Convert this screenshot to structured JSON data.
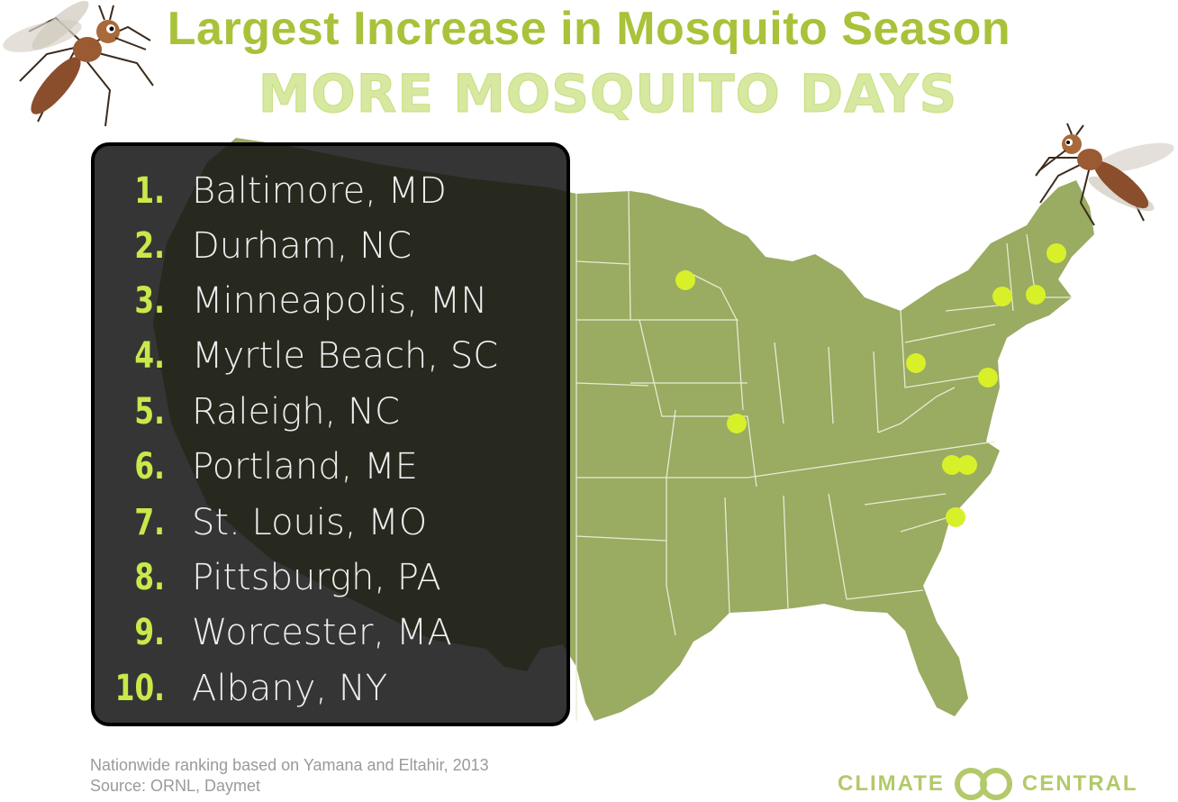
{
  "header": {
    "title": "Largest Increase in Mosquito Season",
    "subtitle": "MORE MOSQUITO DAYS"
  },
  "rankings": [
    {
      "rank": "1.",
      "city": "Baltimore, MD"
    },
    {
      "rank": "2.",
      "city": "Durham, NC"
    },
    {
      "rank": "3.",
      "city": "Minneapolis, MN"
    },
    {
      "rank": "4.",
      "city": "Myrtle Beach, SC"
    },
    {
      "rank": "5.",
      "city": "Raleigh, NC"
    },
    {
      "rank": "6.",
      "city": "Portland, ME"
    },
    {
      "rank": "7.",
      "city": "St. Louis, MO"
    },
    {
      "rank": "8.",
      "city": "Pittsburgh, PA"
    },
    {
      "rank": "9.",
      "city": "Worcester, MA"
    },
    {
      "rank": "10.",
      "city": "Albany, NY"
    }
  ],
  "footer": {
    "note": "Nationwide ranking based on Yamana and Eltahir, 2013",
    "source": "Source: ORNL, Daymet"
  },
  "logo": {
    "left": "CLIMATE",
    "right": "CENTRAL"
  },
  "colors": {
    "land": "#9aab62",
    "borders": "#dfe6c9",
    "marker": "#d8f02a",
    "title": "#a8c23a",
    "panel": "#1c1c1c",
    "rank": "#c9e84a"
  },
  "icons": [
    "mosquito-icon",
    "climate-central-rings-icon"
  ]
}
